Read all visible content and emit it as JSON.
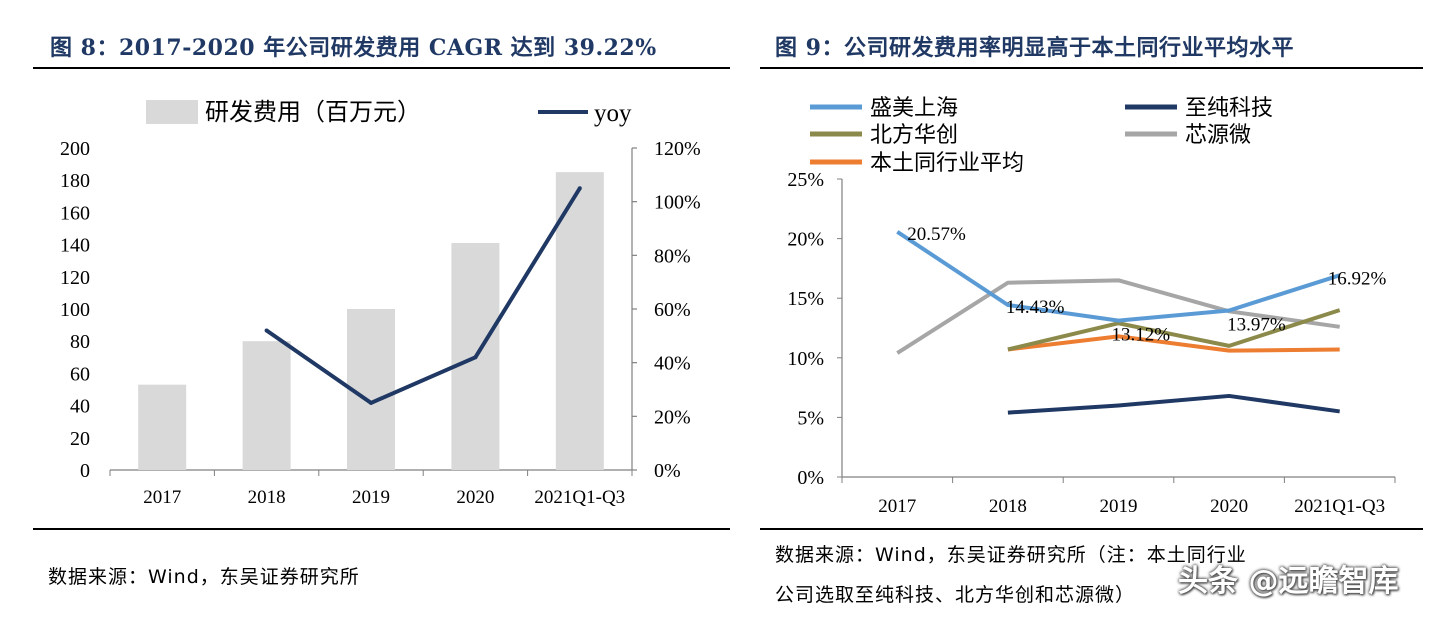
{
  "left": {
    "title": "图 8：2017-2020 年公司研发费用 CAGR 达到 39.22%",
    "source": "数据来源：Wind，东吴证券研究所"
  },
  "right": {
    "title": "图 9：公司研发费用率明显高于本土同行业平均水平",
    "source_line1": "数据来源：Wind，东吴证券研究所（注：本土同行业",
    "source_line2": "公司选取至纯科技、北方华创和芯源微）"
  },
  "watermark": "头条 @远瞻智库",
  "colors": {
    "bar": "#d9d9d9",
    "yoy": "#1f3864",
    "shengmei": "#5b9bd5",
    "zhichun": "#1f3864",
    "beifang": "#8c8a4b",
    "xinyuan": "#a6a6a6",
    "average": "#ed7d31",
    "title": "#1f3864"
  },
  "chart_data": [
    {
      "type": "bar",
      "categories": [
        "2017",
        "2018",
        "2019",
        "2020",
        "2021Q1-Q3"
      ],
      "series": [
        {
          "name": "研发费用（百万元）",
          "type": "bar",
          "axis": "left",
          "values": [
            53,
            80,
            100,
            141,
            185
          ]
        },
        {
          "name": "yoy",
          "type": "line",
          "axis": "right",
          "values": [
            null,
            0.52,
            0.25,
            0.42,
            1.05
          ]
        }
      ],
      "ylim_left": [
        0,
        200
      ],
      "ytick_step_left": 20,
      "ylim_right": [
        0,
        1.2
      ],
      "ytick_step_right": 0.2,
      "legend_position": "top"
    },
    {
      "type": "line",
      "categories": [
        "2017",
        "2018",
        "2019",
        "2020",
        "2021Q1-Q3"
      ],
      "series": [
        {
          "name": "盛美上海",
          "values": [
            0.2057,
            0.1443,
            0.1312,
            0.1397,
            0.1692
          ]
        },
        {
          "name": "至纯科技",
          "values": [
            null,
            0.054,
            0.06,
            0.068,
            0.055
          ]
        },
        {
          "name": "北方华创",
          "values": [
            null,
            0.107,
            0.129,
            0.11,
            0.14
          ]
        },
        {
          "name": "芯源微",
          "values": [
            0.104,
            0.163,
            0.165,
            0.139,
            0.126
          ]
        },
        {
          "name": "本土同行业平均",
          "values": [
            null,
            0.107,
            0.118,
            0.106,
            0.107
          ]
        }
      ],
      "data_labels": [
        "20.57%",
        "14.43%",
        "13.12%",
        "13.97%",
        "16.92%"
      ],
      "ylim": [
        0,
        0.25
      ],
      "ytick_step": 0.05,
      "legend_position": "top"
    }
  ]
}
